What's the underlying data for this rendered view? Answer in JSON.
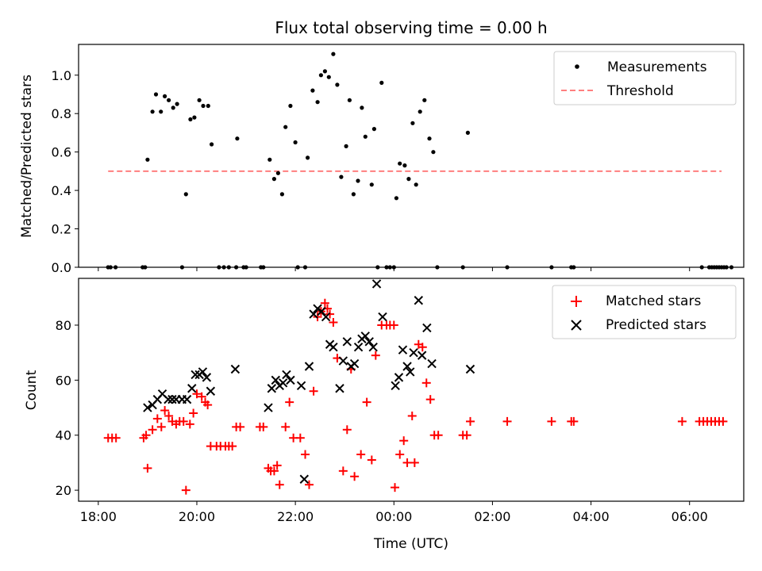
{
  "chart_data": [
    {
      "type": "scatter",
      "title": "Flux total observing time = 0.00 h",
      "xlabel": "",
      "ylabel": "Matched/Predicted stars",
      "xlim": [
        17.6,
        31.1
      ],
      "ylim": [
        0.0,
        1.16
      ],
      "yticks": [
        0.0,
        0.2,
        0.4,
        0.6,
        0.8,
        1.0
      ],
      "ytick_labels": [
        "0.0",
        "0.2",
        "0.4",
        "0.6",
        "0.8",
        "1.0"
      ],
      "legend_position": "top-right",
      "series": [
        {
          "name": "Measurements",
          "color": "#000000",
          "marker": "dot",
          "points": [
            [
              18.2,
              0
            ],
            [
              18.25,
              0
            ],
            [
              18.35,
              0
            ],
            [
              18.9,
              0
            ],
            [
              18.95,
              0
            ],
            [
              19.0,
              0.56
            ],
            [
              19.1,
              0.81
            ],
            [
              19.17,
              0.9
            ],
            [
              19.27,
              0.81
            ],
            [
              19.35,
              0.89
            ],
            [
              19.43,
              0.87
            ],
            [
              19.52,
              0.83
            ],
            [
              19.6,
              0.85
            ],
            [
              19.7,
              0
            ],
            [
              19.78,
              0.38
            ],
            [
              19.87,
              0.77
            ],
            [
              19.95,
              0.78
            ],
            [
              20.05,
              0.87
            ],
            [
              20.13,
              0.84
            ],
            [
              20.23,
              0.84
            ],
            [
              20.3,
              0.64
            ],
            [
              20.45,
              0
            ],
            [
              20.55,
              0
            ],
            [
              20.65,
              0
            ],
            [
              20.8,
              0
            ],
            [
              20.82,
              0.67
            ],
            [
              20.95,
              0
            ],
            [
              21.0,
              0
            ],
            [
              21.3,
              0
            ],
            [
              21.35,
              0
            ],
            [
              21.48,
              0.56
            ],
            [
              21.57,
              0.46
            ],
            [
              21.65,
              0.49
            ],
            [
              21.73,
              0.38
            ],
            [
              21.8,
              0.73
            ],
            [
              21.9,
              0.84
            ],
            [
              22.0,
              0.65
            ],
            [
              22.05,
              0
            ],
            [
              22.2,
              0
            ],
            [
              22.25,
              0.57
            ],
            [
              22.35,
              0.92
            ],
            [
              22.45,
              0.86
            ],
            [
              22.52,
              1.0
            ],
            [
              22.6,
              1.02
            ],
            [
              22.68,
              0.99
            ],
            [
              22.77,
              1.11
            ],
            [
              22.85,
              0.95
            ],
            [
              22.93,
              0.47
            ],
            [
              23.03,
              0.63
            ],
            [
              23.1,
              0.87
            ],
            [
              23.18,
              0.38
            ],
            [
              23.27,
              0.45
            ],
            [
              23.35,
              0.83
            ],
            [
              23.42,
              0.68
            ],
            [
              23.55,
              0.43
            ],
            [
              23.6,
              0.72
            ],
            [
              23.67,
              0
            ],
            [
              23.75,
              0.96
            ],
            [
              23.85,
              0
            ],
            [
              23.92,
              0
            ],
            [
              24.0,
              0
            ],
            [
              24.05,
              0.36
            ],
            [
              24.12,
              0.54
            ],
            [
              24.22,
              0.53
            ],
            [
              24.3,
              0.46
            ],
            [
              24.38,
              0.75
            ],
            [
              24.45,
              0.43
            ],
            [
              24.53,
              0.81
            ],
            [
              24.62,
              0.87
            ],
            [
              24.72,
              0.67
            ],
            [
              24.8,
              0.6
            ],
            [
              24.88,
              0
            ],
            [
              25.4,
              0
            ],
            [
              25.5,
              0.7
            ],
            [
              26.3,
              0
            ],
            [
              27.2,
              0
            ],
            [
              27.6,
              0
            ],
            [
              27.65,
              0
            ],
            [
              30.25,
              0
            ],
            [
              30.4,
              0
            ],
            [
              30.45,
              0
            ],
            [
              30.5,
              0
            ],
            [
              30.55,
              0
            ],
            [
              30.6,
              0
            ],
            [
              30.65,
              0
            ],
            [
              30.7,
              0
            ],
            [
              30.75,
              0
            ],
            [
              30.85,
              0
            ]
          ]
        },
        {
          "name": "Threshold",
          "color": "#ff7f7f",
          "style": "dashed",
          "x": [
            18.2,
            30.65
          ],
          "y": [
            0.5,
            0.5
          ]
        }
      ]
    },
    {
      "type": "scatter",
      "title": "",
      "xlabel": "Time (UTC)",
      "ylabel": "Count",
      "xlim": [
        17.6,
        31.1
      ],
      "ylim": [
        16,
        97
      ],
      "xticks": [
        18,
        20,
        22,
        24,
        26,
        28,
        30
      ],
      "xtick_labels": [
        "18:00",
        "20:00",
        "22:00",
        "00:00",
        "02:00",
        "04:00",
        "06:00"
      ],
      "yticks": [
        20,
        40,
        60,
        80
      ],
      "ytick_labels": [
        "20",
        "40",
        "60",
        "80"
      ],
      "legend_position": "top-right",
      "series": [
        {
          "name": "Matched stars",
          "color": "#ff0000",
          "marker": "plus",
          "points": [
            [
              18.2,
              39
            ],
            [
              18.28,
              39
            ],
            [
              18.36,
              39
            ],
            [
              18.92,
              39
            ],
            [
              18.97,
              40
            ],
            [
              19.0,
              28
            ],
            [
              19.1,
              42
            ],
            [
              19.2,
              46
            ],
            [
              19.28,
              43
            ],
            [
              19.35,
              49
            ],
            [
              19.43,
              47
            ],
            [
              19.5,
              45
            ],
            [
              19.58,
              44
            ],
            [
              19.65,
              45
            ],
            [
              19.73,
              45
            ],
            [
              19.78,
              20
            ],
            [
              19.86,
              44
            ],
            [
              19.93,
              48
            ],
            [
              20.0,
              55
            ],
            [
              20.1,
              54
            ],
            [
              20.17,
              52
            ],
            [
              20.22,
              51
            ],
            [
              20.28,
              36
            ],
            [
              20.4,
              36
            ],
            [
              20.48,
              36
            ],
            [
              20.58,
              36
            ],
            [
              20.65,
              36
            ],
            [
              20.72,
              36
            ],
            [
              20.8,
              43
            ],
            [
              20.88,
              43
            ],
            [
              21.28,
              43
            ],
            [
              21.35,
              43
            ],
            [
              21.45,
              28
            ],
            [
              21.5,
              27
            ],
            [
              21.57,
              27
            ],
            [
              21.63,
              29
            ],
            [
              21.68,
              22
            ],
            [
              21.8,
              43
            ],
            [
              21.88,
              52
            ],
            [
              21.96,
              39
            ],
            [
              22.1,
              39
            ],
            [
              22.2,
              33
            ],
            [
              22.28,
              22
            ],
            [
              22.37,
              56
            ],
            [
              22.45,
              83
            ],
            [
              22.52,
              85
            ],
            [
              22.6,
              88
            ],
            [
              22.65,
              86
            ],
            [
              22.7,
              84
            ],
            [
              22.77,
              81
            ],
            [
              22.85,
              68
            ],
            [
              22.97,
              27
            ],
            [
              23.05,
              42
            ],
            [
              23.13,
              64
            ],
            [
              23.2,
              25
            ],
            [
              23.33,
              33
            ],
            [
              23.45,
              52
            ],
            [
              23.55,
              31
            ],
            [
              23.63,
              69
            ],
            [
              23.75,
              80
            ],
            [
              23.85,
              80
            ],
            [
              23.92,
              80
            ],
            [
              24.0,
              80
            ],
            [
              24.02,
              21
            ],
            [
              24.12,
              33
            ],
            [
              24.2,
              38
            ],
            [
              24.27,
              30
            ],
            [
              24.37,
              47
            ],
            [
              24.42,
              30
            ],
            [
              24.5,
              73
            ],
            [
              24.58,
              72
            ],
            [
              24.66,
              59
            ],
            [
              24.74,
              53
            ],
            [
              24.82,
              40
            ],
            [
              24.9,
              40
            ],
            [
              25.4,
              40
            ],
            [
              25.48,
              40
            ],
            [
              25.55,
              45
            ],
            [
              26.3,
              45
            ],
            [
              27.2,
              45
            ],
            [
              27.6,
              45
            ],
            [
              27.65,
              45
            ],
            [
              29.85,
              45
            ],
            [
              30.2,
              45
            ],
            [
              30.28,
              45
            ],
            [
              30.36,
              45
            ],
            [
              30.44,
              45
            ],
            [
              30.52,
              45
            ],
            [
              30.6,
              45
            ],
            [
              30.68,
              45
            ]
          ]
        },
        {
          "name": "Predicted stars",
          "color": "#000000",
          "marker": "x",
          "points": [
            [
              19.0,
              50
            ],
            [
              19.1,
              51
            ],
            [
              19.2,
              53
            ],
            [
              19.3,
              55
            ],
            [
              19.42,
              53
            ],
            [
              19.5,
              53
            ],
            [
              19.58,
              53
            ],
            [
              19.7,
              53
            ],
            [
              19.8,
              53
            ],
            [
              19.9,
              57
            ],
            [
              19.97,
              62
            ],
            [
              20.05,
              62
            ],
            [
              20.12,
              63
            ],
            [
              20.2,
              61
            ],
            [
              20.28,
              56
            ],
            [
              20.78,
              64
            ],
            [
              21.45,
              50
            ],
            [
              21.52,
              57
            ],
            [
              21.6,
              60
            ],
            [
              21.68,
              58
            ],
            [
              21.75,
              59
            ],
            [
              21.82,
              62
            ],
            [
              21.9,
              60
            ],
            [
              22.12,
              58
            ],
            [
              22.18,
              24
            ],
            [
              22.28,
              65
            ],
            [
              22.37,
              84
            ],
            [
              22.45,
              86
            ],
            [
              22.53,
              85
            ],
            [
              22.62,
              83
            ],
            [
              22.7,
              73
            ],
            [
              22.77,
              72
            ],
            [
              22.9,
              57
            ],
            [
              22.97,
              67
            ],
            [
              23.05,
              74
            ],
            [
              23.13,
              65
            ],
            [
              23.2,
              66
            ],
            [
              23.28,
              72
            ],
            [
              23.35,
              75
            ],
            [
              23.42,
              76
            ],
            [
              23.5,
              74
            ],
            [
              23.58,
              72
            ],
            [
              23.65,
              95
            ],
            [
              23.77,
              83
            ],
            [
              24.03,
              58
            ],
            [
              24.1,
              61
            ],
            [
              24.18,
              71
            ],
            [
              24.27,
              65
            ],
            [
              24.33,
              63
            ],
            [
              24.4,
              70
            ],
            [
              24.5,
              89
            ],
            [
              24.57,
              69
            ],
            [
              24.67,
              79
            ],
            [
              24.77,
              66
            ],
            [
              25.55,
              64
            ]
          ]
        }
      ]
    }
  ]
}
